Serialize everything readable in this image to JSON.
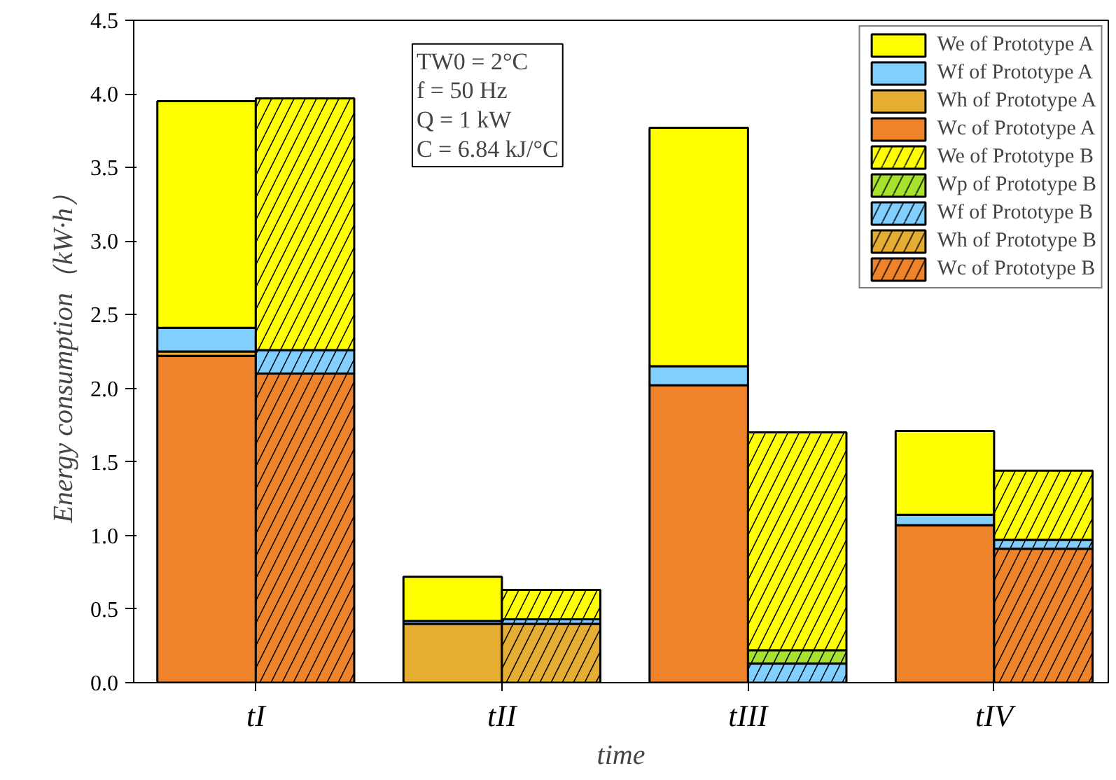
{
  "chart_data": {
    "type": "bar",
    "stacked": true,
    "xlabel": "time",
    "ylabel": "Energy consumption（kW·h）",
    "categories": [
      null,
      null,
      null,
      null,
      null,
      null,
      null,
      null
    ],
    "ylim": [
      0,
      4.5
    ],
    "yticks": [
      {
        "value": 0,
        "label": "0.0"
      },
      0.5,
      {
        "value": 1,
        "label": "1.0"
      },
      1.5,
      {
        "value": 2,
        "label": "2.0"
      },
      2.5,
      {
        "value": 3,
        "label": "3.0"
      },
      3.5,
      {
        "value": 4,
        "label": "4.0"
      },
      4.5
    ],
    "grid": false,
    "legend": "top right",
    "annotations": [
      "TW0 = 2°C",
      "f = 50 Hz",
      "Q = 1 kW",
      "C = 6.84 kJ/°C",
      "tI",
      "tII",
      "tIII",
      "tIV"
    ],
    "series": [
      {
        "name": "Wc of Prototype A",
        "color": "#ef832b",
        "values": [
          2.22,
          null,
          null,
          null,
          2.02,
          null,
          1.07,
          null
        ]
      },
      {
        "name": "Wh of Prototype A",
        "color": "#e5ae32",
        "values": [
          0.03,
          null,
          0.4,
          null,
          null,
          null,
          null,
          null
        ]
      },
      {
        "name": "Wf of Prototype A",
        "color": "#80cfff",
        "values": [
          0.16,
          null,
          0.02,
          null,
          0.13,
          null,
          0.07,
          null
        ]
      },
      {
        "name": "We of Prototype A",
        "color": "#ffff00",
        "values": [
          1.54,
          null,
          0.3,
          null,
          1.62,
          null,
          0.57,
          null
        ]
      },
      {
        "name": "Wc of Prototype B",
        "color": "#ef832b",
        "values": [
          null,
          2.1,
          null,
          null,
          null,
          null,
          null,
          0.91
        ]
      },
      {
        "name": "Wh of Prototype B",
        "color": "#e5ae32",
        "values": [
          null,
          null,
          null,
          0.4,
          null,
          null,
          null,
          null
        ]
      },
      {
        "name": "Wf of Prototype B",
        "color": "#80cfff",
        "values": [
          null,
          0.16,
          null,
          0.03,
          null,
          0.13,
          null,
          0.06
        ]
      },
      {
        "name": "Wp of Prototype B",
        "color": "#a6e32f",
        "values": [
          null,
          null,
          null,
          null,
          null,
          0.09,
          null,
          null
        ]
      },
      {
        "name": "We of Prototype B",
        "color": "#ffff00",
        "values": [
          null,
          1.71,
          null,
          0.2,
          null,
          1.48,
          null,
          0.47
        ]
      }
    ]
  }
}
